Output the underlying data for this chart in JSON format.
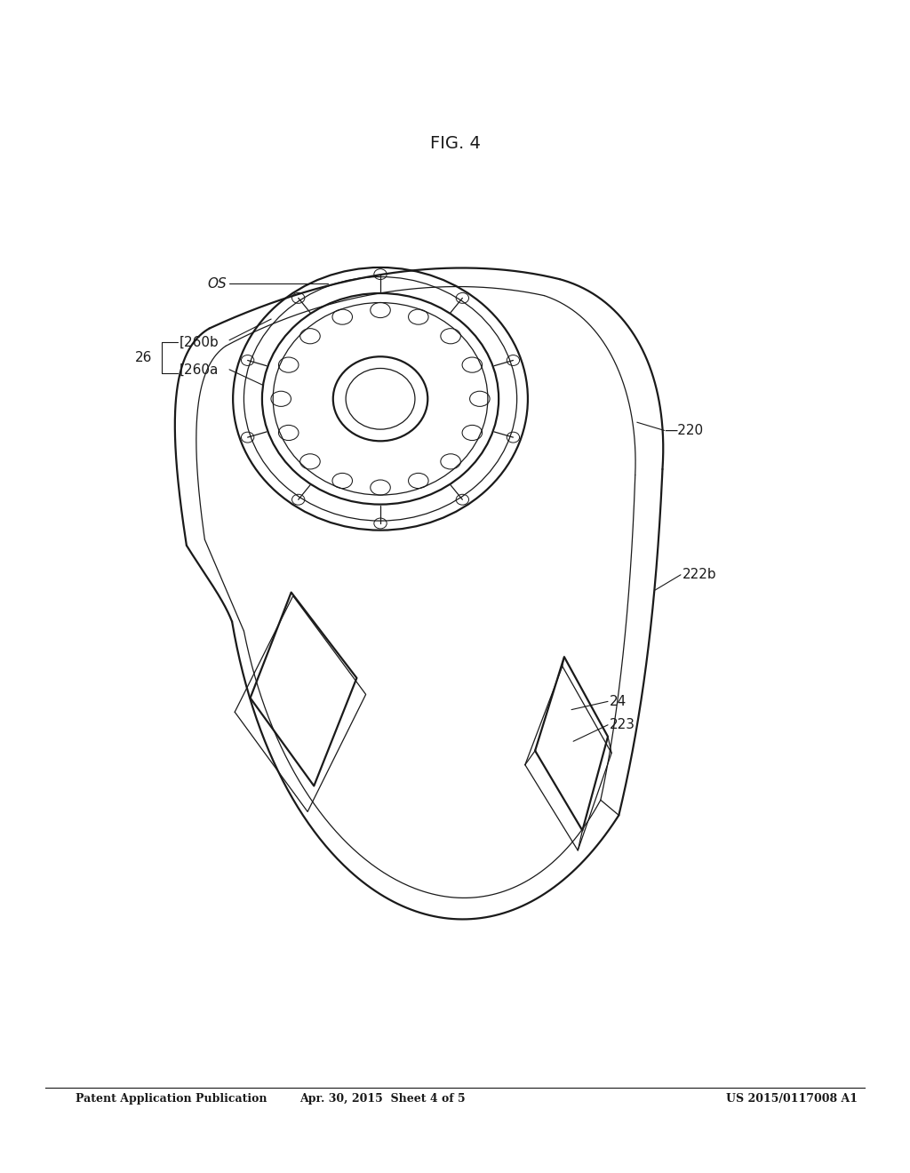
{
  "bg_color": "#ffffff",
  "line_color": "#1a1a1a",
  "header_left": "Patent Application Publication",
  "header_mid": "Apr. 30, 2015  Sheet 4 of 5",
  "header_right": "US 2015/0117008 A1",
  "fig_label": "FIG. 4",
  "lw_main": 1.6,
  "lw_thin": 0.9,
  "lw_label": 0.8
}
